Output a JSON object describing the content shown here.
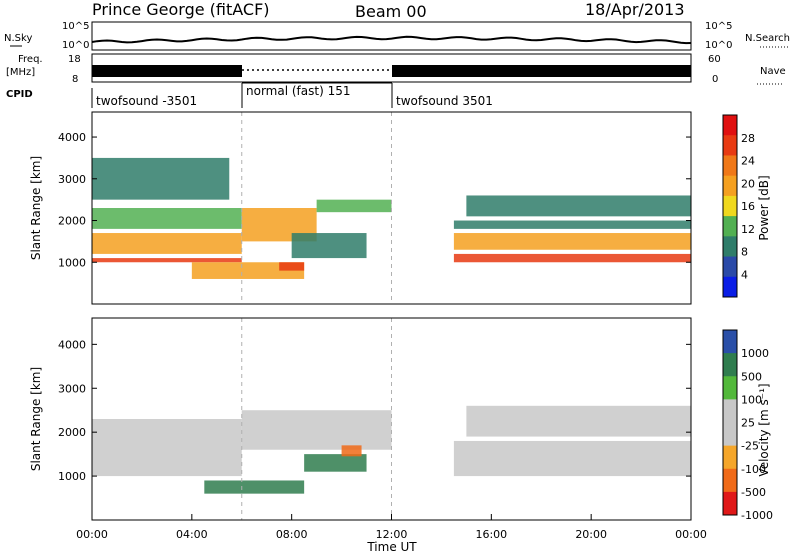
{
  "header": {
    "station": "Prince George (fitACF)",
    "beam": "Beam 00",
    "date": "18/Apr/2013"
  },
  "noise_panel": {
    "left_label": "N.Sky",
    "left_ticks": [
      "10^5",
      "10^0"
    ],
    "right_label": "N.Search",
    "right_ticks": [
      "10^5",
      "10^0"
    ]
  },
  "freq_panel": {
    "left_label_1": "Freq.",
    "left_label_2": "[MHz]",
    "left_ticks": [
      "18",
      "8"
    ],
    "right_label": "Nave",
    "right_ticks": [
      "60",
      "0"
    ]
  },
  "cpid_panel": {
    "label": "CPID",
    "segments": [
      "twofsound -3501",
      "normal (fast) 151",
      "twofsound 3501"
    ]
  },
  "colors": {
    "power_scale": [
      "#0a1ee6",
      "#2a4aa8",
      "#2f7d6a",
      "#52b052",
      "#f0d81e",
      "#f5a020",
      "#f07818",
      "#e83a12",
      "#e01010"
    ],
    "velocity_scale": [
      "#e01818",
      "#f06a18",
      "#f5a62a",
      "#c8c8c8",
      "#c8c8c8",
      "#52b83a",
      "#2f7d4e",
      "#2a4fa8"
    ]
  },
  "chart_data": [
    {
      "type": "heatmap",
      "panel": "power",
      "xlabel": "",
      "ylabel": "Slant Range [km]",
      "xlim": [
        "00:00",
        "24:00"
      ],
      "ylim": [
        0,
        4600
      ],
      "y_ticks": [
        "1000",
        "2000",
        "3000",
        "4000"
      ],
      "colorbar_label": "Power [dB]",
      "colorbar_ticks": [
        "28",
        "24",
        "20",
        "16",
        "12",
        "8",
        "4"
      ],
      "colorbar_range": [
        0,
        32
      ],
      "echo_bands": [
        {
          "t0": 0.0,
          "t1": 6.0,
          "r0": 1000,
          "r1": 1100,
          "value": 28
        },
        {
          "t0": 0.0,
          "t1": 6.0,
          "r0": 1200,
          "r1": 1700,
          "value": 20
        },
        {
          "t0": 0.0,
          "t1": 6.0,
          "r0": 1800,
          "r1": 2300,
          "value": 12
        },
        {
          "t0": 0.0,
          "t1": 5.5,
          "r0": 2500,
          "r1": 3500,
          "value": 10
        },
        {
          "t0": 6.0,
          "t1": 9.0,
          "r0": 1500,
          "r1": 2300,
          "value": 18
        },
        {
          "t0": 9.0,
          "t1": 12.0,
          "r0": 2200,
          "r1": 2500,
          "value": 12
        },
        {
          "t0": 4.0,
          "t1": 8.5,
          "r0": 600,
          "r1": 1000,
          "value": 18
        },
        {
          "t0": 7.5,
          "t1": 8.5,
          "r0": 800,
          "r1": 1000,
          "value": 28
        },
        {
          "t0": 8.0,
          "t1": 11.0,
          "r0": 1100,
          "r1": 1700,
          "value": 10
        },
        {
          "t0": 14.5,
          "t1": 24.0,
          "r0": 1000,
          "r1": 1200,
          "value": 26
        },
        {
          "t0": 14.5,
          "t1": 24.0,
          "r0": 1300,
          "r1": 1700,
          "value": 18
        },
        {
          "t0": 14.5,
          "t1": 24.0,
          "r0": 1800,
          "r1": 2000,
          "value": 10
        },
        {
          "t0": 15.0,
          "t1": 24.0,
          "r0": 2100,
          "r1": 2600,
          "value": 8
        }
      ]
    },
    {
      "type": "heatmap",
      "panel": "velocity",
      "xlabel": "Time UT",
      "ylabel": "Slant Range [km]",
      "xlim": [
        "00:00",
        "24:00"
      ],
      "ylim": [
        0,
        4600
      ],
      "x_ticks": [
        "00:00",
        "04:00",
        "08:00",
        "12:00",
        "16:00",
        "20:00",
        "00:00"
      ],
      "y_ticks": [
        "1000",
        "2000",
        "3000",
        "4000"
      ],
      "colorbar_label": "Velocity [m s⁻¹]",
      "colorbar_ticks": [
        "1000",
        "500",
        "100",
        "25",
        "-25",
        "-100",
        "-500",
        "-1000"
      ],
      "echo_bands": [
        {
          "t0": 0.0,
          "t1": 6.0,
          "r0": 1000,
          "r1": 2300,
          "value": 0
        },
        {
          "t0": 6.0,
          "t1": 12.0,
          "r0": 1600,
          "r1": 2500,
          "value": 0
        },
        {
          "t0": 4.5,
          "t1": 8.5,
          "r0": 600,
          "r1": 900,
          "value": 150
        },
        {
          "t0": 8.5,
          "t1": 11.0,
          "r0": 1100,
          "r1": 1500,
          "value": 150
        },
        {
          "t0": 10.0,
          "t1": 10.8,
          "r0": 1450,
          "r1": 1700,
          "value": -250
        },
        {
          "t0": 14.5,
          "t1": 24.0,
          "r0": 1000,
          "r1": 1800,
          "value": 0
        },
        {
          "t0": 15.0,
          "t1": 24.0,
          "r0": 1900,
          "r1": 2600,
          "value": 0
        }
      ]
    }
  ]
}
